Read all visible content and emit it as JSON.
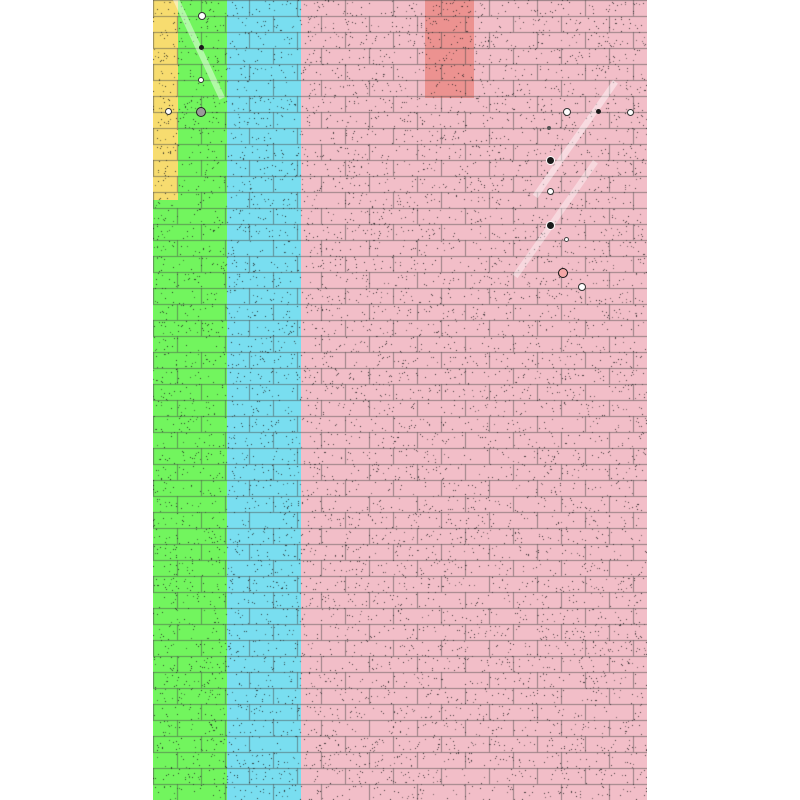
{
  "board": {
    "lanes": [
      {
        "name": "lane-green",
        "color": "#72f55e"
      },
      {
        "name": "lane-cyan",
        "color": "#79def0"
      },
      {
        "name": "lane-pink",
        "color": "#f2bec8"
      }
    ],
    "highlights": [
      {
        "name": "yellow-zone",
        "color": "#f7dc6f"
      },
      {
        "name": "red-zone",
        "color": "#eb8d8a"
      }
    ],
    "texture": {
      "brick_color": "#4a4a4a",
      "speckle_color": "#222222"
    },
    "balls": [
      {
        "name": "white-ball",
        "fill": "#ffffff"
      },
      {
        "name": "dark-ball",
        "fill": "#1a1a1a"
      },
      {
        "name": "gray-ball",
        "fill": "#9a9a9a"
      },
      {
        "name": "pink-ball",
        "fill": "#f4a6a6"
      }
    ]
  }
}
